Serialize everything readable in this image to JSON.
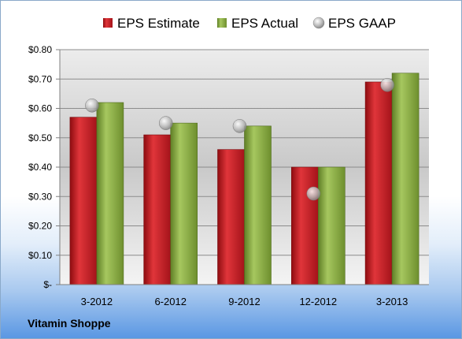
{
  "chart_data": {
    "type": "bar",
    "categories": [
      "3-2012",
      "6-2012",
      "9-2012",
      "12-2012",
      "3-2013"
    ],
    "series": [
      {
        "name": "EPS Estimate",
        "kind": "bar",
        "color": "#c8191f",
        "values": [
          0.57,
          0.51,
          0.46,
          0.4,
          0.69
        ]
      },
      {
        "name": "EPS Actual",
        "kind": "bar",
        "color": "#8bb043",
        "values": [
          0.62,
          0.55,
          0.54,
          0.4,
          0.72
        ]
      },
      {
        "name": "EPS GAAP",
        "kind": "marker",
        "color": "#c9c9c9",
        "values": [
          0.61,
          0.55,
          0.54,
          0.31,
          0.68
        ]
      }
    ],
    "y_ticks": [
      "$-",
      "$0.10",
      "$0.20",
      "$0.30",
      "$0.40",
      "$0.50",
      "$0.60",
      "$0.70",
      "$0.80"
    ],
    "ylim": [
      0,
      0.8
    ],
    "grid": true,
    "legend_position": "top"
  },
  "company": "Vitamin Shoppe"
}
